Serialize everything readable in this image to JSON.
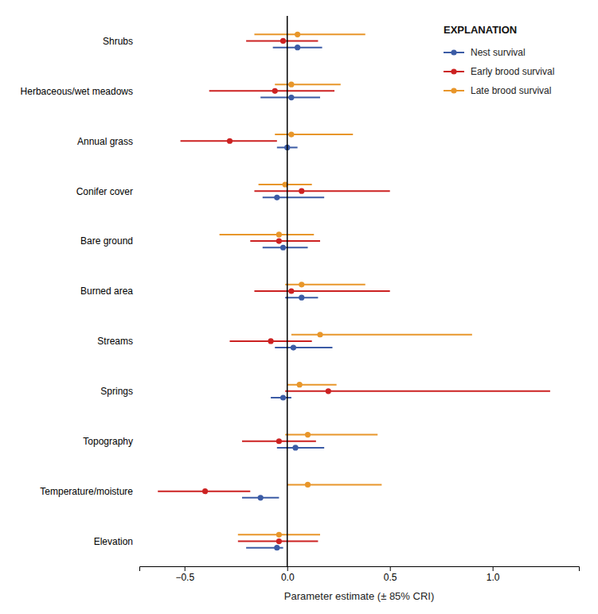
{
  "chart_data": {
    "type": "forest",
    "x_label": "Parameter estimate (± 85% CRI)",
    "categories": [
      "Shrubs",
      "Herbaceous/wet meadows",
      "Annual grass",
      "Conifer cover",
      "Bare ground",
      "Burned area",
      "Streams",
      "Springs",
      "Topography",
      "Temperature/moisture",
      "Elevation"
    ],
    "series": [
      {
        "name": "Nest survival",
        "color": "#3B5BA5",
        "values": [
          0.05,
          0.02,
          0.0,
          -0.05,
          -0.02,
          0.07,
          0.03,
          -0.02,
          0.04,
          -0.13,
          -0.05
        ],
        "lo": [
          -0.07,
          -0.13,
          -0.05,
          -0.12,
          -0.12,
          -0.01,
          -0.06,
          -0.08,
          -0.05,
          -0.22,
          -0.2
        ],
        "hi": [
          0.17,
          0.16,
          0.05,
          0.18,
          0.1,
          0.15,
          0.22,
          0.02,
          0.18,
          -0.04,
          -0.02
        ]
      },
      {
        "name": "Early brood survival",
        "color": "#CC2222",
        "values": [
          -0.02,
          -0.06,
          -0.28,
          0.07,
          -0.04,
          0.02,
          -0.08,
          0.2,
          -0.04,
          -0.4,
          -0.04
        ],
        "lo": [
          -0.2,
          -0.38,
          -0.52,
          -0.16,
          -0.18,
          -0.16,
          -0.28,
          -0.01,
          -0.22,
          -0.63,
          -0.24
        ],
        "hi": [
          0.15,
          0.23,
          -0.05,
          0.5,
          0.16,
          0.5,
          0.12,
          1.28,
          0.14,
          -0.18,
          0.15
        ]
      },
      {
        "name": "Late brood survival",
        "color": "#E8962A",
        "values": [
          0.05,
          0.02,
          0.02,
          -0.01,
          -0.04,
          0.07,
          0.16,
          0.06,
          0.1,
          0.1,
          -0.04
        ],
        "lo": [
          -0.16,
          -0.06,
          -0.06,
          -0.14,
          -0.33,
          -0.01,
          0.02,
          0.0,
          -0.01,
          0.0,
          -0.24
        ],
        "hi": [
          0.38,
          0.26,
          0.32,
          0.12,
          0.13,
          0.38,
          0.9,
          0.24,
          0.44,
          0.46,
          0.16
        ]
      }
    ],
    "reference_x": 0,
    "xlim": [
      -0.72,
      1.42
    ],
    "xticks": [
      {
        "value": -0.5,
        "label": "−0.5"
      },
      {
        "value": 0.0,
        "label": "0.0"
      },
      0.5,
      {
        "value": 1.0,
        "label": "1.0"
      }
    ],
    "legend": "upper right",
    "legend_title": "EXPLANATION"
  }
}
